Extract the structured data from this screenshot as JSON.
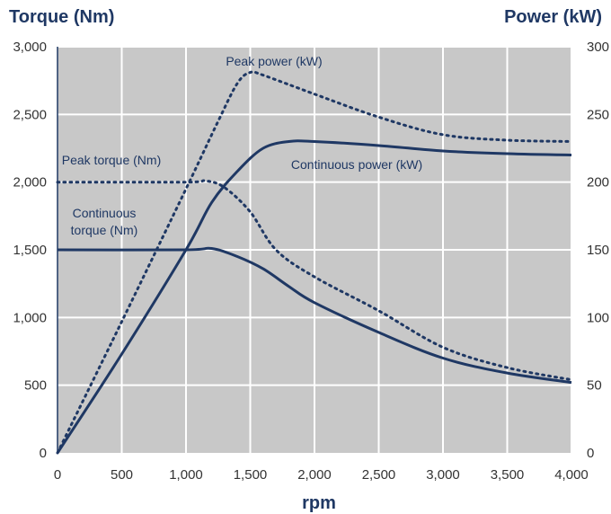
{
  "chart_data": {
    "type": "line",
    "xlabel": "rpm",
    "ylabel_left": "Torque (Nm)",
    "ylabel_right": "Power (kW)",
    "xlim": [
      0,
      4000
    ],
    "ylim_left": [
      0,
      3000
    ],
    "ylim_right": [
      0,
      300
    ],
    "x_ticks": [
      0,
      500,
      1000,
      1500,
      2000,
      2500,
      3000,
      3500,
      4000
    ],
    "x_tick_labels": [
      "0",
      "500",
      "1,000",
      "1,500",
      "2,000",
      "2,500",
      "3,000",
      "3,500",
      "4,000"
    ],
    "y_left_ticks": [
      0,
      500,
      1000,
      1500,
      2000,
      2500,
      3000
    ],
    "y_left_tick_labels": [
      "0",
      "500",
      "1,000",
      "1,500",
      "2,000",
      "2,500",
      "3,000"
    ],
    "y_right_ticks": [
      0,
      50,
      100,
      150,
      200,
      250,
      300
    ],
    "y_right_tick_labels": [
      "0",
      "50",
      "100",
      "150",
      "200",
      "250",
      "300"
    ],
    "grid": true,
    "colors": {
      "plot_background": "#c8c8c8",
      "grid": "#ffffff",
      "series": "#1f3864",
      "axis_title": "#1f3864"
    },
    "series": [
      {
        "name": "Peak power (kW)",
        "axis": "right",
        "style": "dotted",
        "x": [
          0,
          500,
          1000,
          1250,
          1400,
          1500,
          1600,
          2000,
          2500,
          3000,
          3500,
          4000
        ],
        "y": [
          0,
          97,
          195,
          245,
          273,
          281,
          279,
          265,
          248,
          235,
          231,
          230
        ]
      },
      {
        "name": "Continuous power (kW)",
        "axis": "right",
        "style": "solid",
        "x": [
          0,
          500,
          1000,
          1200,
          1400,
          1600,
          1800,
          2000,
          2500,
          3000,
          3500,
          4000
        ],
        "y": [
          0,
          73,
          150,
          185,
          208,
          225,
          230,
          230,
          227,
          223,
          221,
          220
        ]
      },
      {
        "name": "Peak torque (Nm)",
        "axis": "left",
        "style": "dotted",
        "x": [
          0,
          1000,
          1150,
          1300,
          1500,
          1700,
          2000,
          2500,
          3000,
          3500,
          4000
        ],
        "y": [
          2000,
          2000,
          2010,
          1960,
          1780,
          1500,
          1300,
          1050,
          780,
          630,
          540
        ]
      },
      {
        "name": "Continuous torque (Nm)",
        "axis": "left",
        "style": "solid",
        "x": [
          0,
          1000,
          1200,
          1400,
          1600,
          1800,
          2000,
          2500,
          3000,
          3500,
          4000
        ],
        "y": [
          1500,
          1500,
          1510,
          1450,
          1360,
          1230,
          1110,
          890,
          700,
          590,
          520
        ]
      }
    ],
    "annotations": [
      {
        "text": "Peak power (kW)",
        "series": "Peak power (kW)"
      },
      {
        "text": "Continuous power (kW)",
        "series": "Continuous power (kW)"
      },
      {
        "text": "Peak torque (Nm)",
        "series": "Peak torque (Nm)"
      },
      {
        "text": "Continuous",
        "series": "Continuous torque (Nm)"
      },
      {
        "text": "torque (Nm)",
        "series": "Continuous torque (Nm)"
      }
    ]
  }
}
